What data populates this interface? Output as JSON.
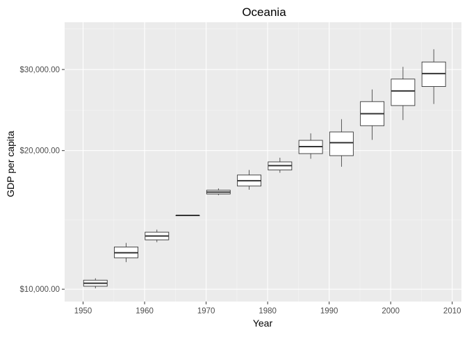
{
  "chart_data": {
    "type": "boxplot",
    "title": "Oceania",
    "xlabel": "Year",
    "ylabel": "GDP per capita",
    "y_scale": "log",
    "ylim": [
      9400,
      38000
    ],
    "xlim": [
      1947.0,
      2011.5
    ],
    "grid": true,
    "legend": "none",
    "x_ticks": [
      {
        "value": 1950,
        "label": "1950"
      },
      {
        "value": 1960,
        "label": "1960"
      },
      {
        "value": 1970,
        "label": "1970"
      },
      {
        "value": 1980,
        "label": "1980"
      },
      {
        "value": 1990,
        "label": "1990"
      },
      {
        "value": 2000,
        "label": "2000"
      },
      {
        "value": 2010,
        "label": "2010"
      }
    ],
    "y_ticks": [
      {
        "value": 10000,
        "label": "$10,000.00"
      },
      {
        "value": 20000,
        "label": "$20,000.00"
      },
      {
        "value": 30000,
        "label": "$30,000.00"
      }
    ],
    "boxes": [
      {
        "x": 1952,
        "whisker_low": 10040,
        "q1": 10150,
        "median": 10300,
        "q3": 10460,
        "whisker_high": 10560
      },
      {
        "x": 1957,
        "whisker_low": 11450,
        "q1": 11700,
        "median": 12000,
        "q3": 12350,
        "whisker_high": 12600
      },
      {
        "x": 1962,
        "whisker_low": 12650,
        "q1": 12800,
        "median": 13050,
        "q3": 13300,
        "whisker_high": 13470
      },
      {
        "x": 1967,
        "whisker_low": 14460,
        "q1": 14460,
        "median": 14460,
        "q3": 14460,
        "whisker_high": 14460
      },
      {
        "x": 1972,
        "whisker_low": 16000,
        "q1": 16100,
        "median": 16250,
        "q3": 16400,
        "whisker_high": 16550
      },
      {
        "x": 1977,
        "whisker_low": 16450,
        "q1": 16750,
        "median": 17200,
        "q3": 17700,
        "whisker_high": 18150
      },
      {
        "x": 1982,
        "whisker_low": 17900,
        "q1": 18150,
        "median": 18550,
        "q3": 18900,
        "whisker_high": 19300
      },
      {
        "x": 1987,
        "whisker_low": 19200,
        "q1": 19700,
        "median": 20400,
        "q3": 21050,
        "whisker_high": 21800
      },
      {
        "x": 1992,
        "whisker_low": 18450,
        "q1": 19500,
        "median": 20800,
        "q3": 21950,
        "whisker_high": 23400
      },
      {
        "x": 1997,
        "whisker_low": 21100,
        "q1": 22650,
        "median": 24050,
        "q3": 25550,
        "whisker_high": 27150
      },
      {
        "x": 2002,
        "whisker_low": 23300,
        "q1": 25050,
        "median": 26950,
        "q3": 28600,
        "whisker_high": 30400
      },
      {
        "x": 2007,
        "whisker_low": 25250,
        "q1": 27550,
        "median": 29400,
        "q3": 31150,
        "whisker_high": 33200
      }
    ]
  }
}
